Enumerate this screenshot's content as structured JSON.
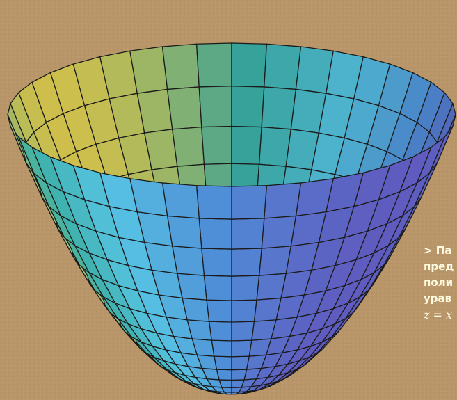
{
  "caption": {
    "lines": [
      "> Па",
      "пред",
      "поли",
      "урав"
    ],
    "formula": "z = x"
  },
  "colors": {
    "background": "#b8966a",
    "mesh_line": "#1b1b1b",
    "caption_text": "#fffbe0",
    "gradient": [
      "#5f5bbf",
      "#4f8fd8",
      "#57c3e3",
      "#3bb0a6",
      "#e0d053"
    ]
  }
}
